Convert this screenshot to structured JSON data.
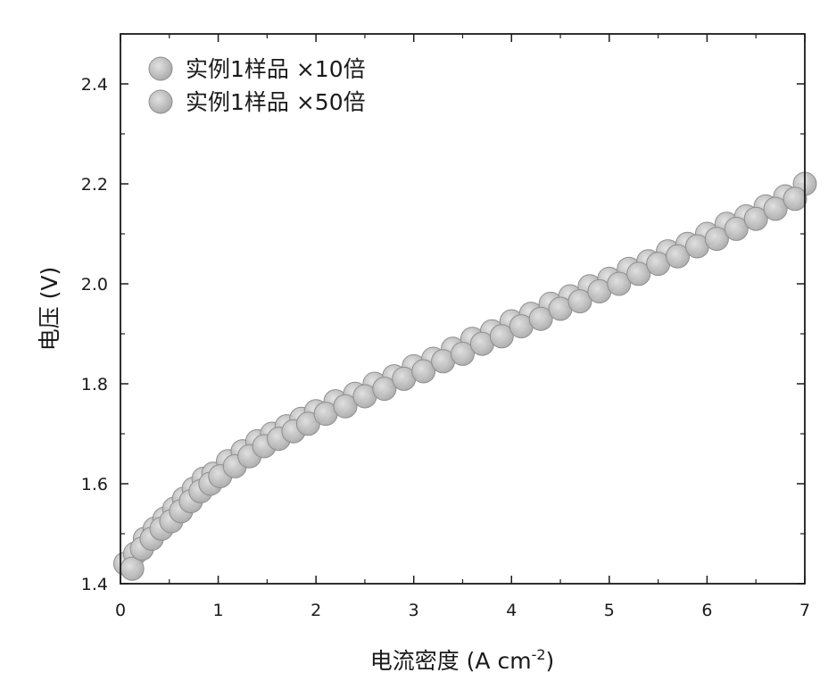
{
  "chart_data": {
    "type": "scatter",
    "title": "",
    "xlabel": "电流密度 (A cm",
    "xlabel_sup": "-2",
    "xlabel_close": ")",
    "ylabel": "电压 (V)",
    "xlim": [
      0,
      7
    ],
    "ylim": [
      1.4,
      2.5
    ],
    "xticks": [
      0,
      1,
      2,
      3,
      4,
      5,
      6,
      7
    ],
    "yticks": [
      1.4,
      1.6,
      1.8,
      2.0,
      2.2,
      2.4
    ],
    "ytick_labels": [
      "1.4",
      "1.6",
      "1.8",
      "2.0",
      "2.2",
      "2.4"
    ],
    "grid": false,
    "legend_position": "top-left",
    "marker_color": "#b8b8b8",
    "marker_edge": "#8f8f8f",
    "series": [
      {
        "name": "实例1样品 ×10倍",
        "x": [
          0.05,
          0.15,
          0.25,
          0.35,
          0.45,
          0.55,
          0.65,
          0.75,
          0.85,
          0.95,
          1.1,
          1.25,
          1.4,
          1.55,
          1.7,
          1.85,
          2.0,
          2.2,
          2.4,
          2.6,
          2.8,
          3.0,
          3.2,
          3.4,
          3.6,
          3.8,
          4.0,
          4.2,
          4.4,
          4.6,
          4.8,
          5.0,
          5.2,
          5.4,
          5.6,
          5.8,
          6.0,
          6.2,
          6.4,
          6.6,
          6.8,
          7.0
        ],
        "y": [
          1.44,
          1.46,
          1.49,
          1.51,
          1.53,
          1.55,
          1.57,
          1.59,
          1.61,
          1.62,
          1.645,
          1.665,
          1.685,
          1.7,
          1.715,
          1.73,
          1.745,
          1.765,
          1.78,
          1.8,
          1.815,
          1.835,
          1.85,
          1.87,
          1.89,
          1.905,
          1.925,
          1.94,
          1.96,
          1.975,
          1.995,
          2.01,
          2.03,
          2.045,
          2.065,
          2.08,
          2.1,
          2.12,
          2.135,
          2.155,
          2.175,
          2.2
        ]
      },
      {
        "name": "实例1样品 ×50倍",
        "x": [
          0.12,
          0.22,
          0.32,
          0.42,
          0.52,
          0.62,
          0.72,
          0.82,
          0.92,
          1.02,
          1.17,
          1.32,
          1.47,
          1.62,
          1.77,
          1.92,
          2.1,
          2.3,
          2.5,
          2.7,
          2.9,
          3.1,
          3.3,
          3.5,
          3.7,
          3.9,
          4.1,
          4.3,
          4.5,
          4.7,
          4.9,
          5.1,
          5.3,
          5.5,
          5.7,
          5.9,
          6.1,
          6.3,
          6.5,
          6.7,
          6.9
        ],
        "y": [
          1.43,
          1.47,
          1.49,
          1.51,
          1.525,
          1.545,
          1.565,
          1.585,
          1.6,
          1.615,
          1.635,
          1.655,
          1.675,
          1.69,
          1.705,
          1.72,
          1.74,
          1.755,
          1.775,
          1.79,
          1.81,
          1.825,
          1.845,
          1.86,
          1.88,
          1.895,
          1.915,
          1.93,
          1.95,
          1.965,
          1.985,
          2.0,
          2.02,
          2.04,
          2.055,
          2.075,
          2.09,
          2.11,
          2.13,
          2.15,
          2.17
        ]
      }
    ]
  }
}
